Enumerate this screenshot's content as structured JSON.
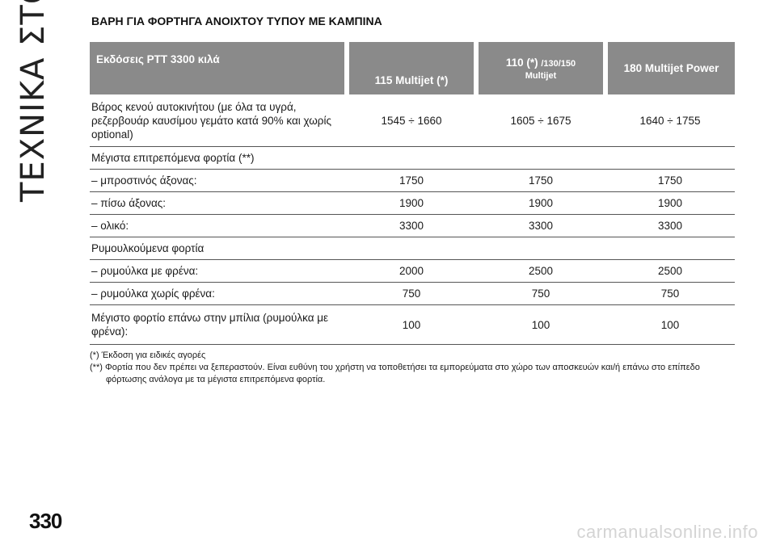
{
  "side_tab": {
    "label": "ΤΕΧΝΙΚΑ ΣΤΟΙΧΕΙΑ"
  },
  "page_number": "330",
  "section_title": "ΒΑΡΗ ΓΙΑ ΦΟΡΤΗΓΑ ΑΝΟΙΧΤΟΥ ΤΥΠΟΥ ΜΕ ΚΑΜΠΙΝΑ",
  "table": {
    "headers": {
      "col0": "Εκδόσεις PTT 3300 κιλά",
      "col1": "115 Multijet (*)",
      "col2_main": "110 (*) ",
      "col2_small": "/130/150",
      "col2_line2": "Multijet",
      "col3": "180 Multijet Power"
    },
    "rows": [
      {
        "label": "Βάρος κενού αυτοκινήτου (με όλα τα υγρά, ρεζερβουάρ καυσίμου γεμάτο κατά 90% και χωρίς optional)",
        "v1": "1545 ÷ 1660",
        "v2": "1605 ÷ 1675",
        "v3": "1640 ÷ 1755"
      },
      {
        "label": "Μέγιστα επιτρεπόμενα φορτία (**)",
        "v1": "",
        "v2": "",
        "v3": ""
      },
      {
        "label": "– μπροστινός άξονας:",
        "v1": "1750",
        "v2": "1750",
        "v3": "1750"
      },
      {
        "label": "– πίσω άξονας:",
        "v1": "1900",
        "v2": "1900",
        "v3": "1900"
      },
      {
        "label": "– ολικό:",
        "v1": "3300",
        "v2": "3300",
        "v3": "3300"
      },
      {
        "label": "Ρυμουλκούμενα φορτία",
        "v1": "",
        "v2": "",
        "v3": ""
      },
      {
        "label": "– ρυμούλκα με φρένα:",
        "v1": "2000",
        "v2": "2500",
        "v3": "2500"
      },
      {
        "label": "– ρυμούλκα χωρίς φρένα:",
        "v1": "750",
        "v2": "750",
        "v3": "750"
      },
      {
        "label": "Μέγιστο φορτίο επάνω στην μπίλια (ρυμούλκα με φρένα):",
        "v1": "100",
        "v2": "100",
        "v3": "100"
      }
    ]
  },
  "footnotes": [
    "(*) Έκδοση για ειδικές αγορές",
    "(**) Φορτία που δεν πρέπει να ξεπεραστούν. Είναι ευθύνη του χρήστη να τοποθετήσει τα εμπορεύματα στο χώρο των αποσκευών και/ή επάνω στο επίπεδο φόρτωσης ανάλογα με τα μέγιστα επιτρεπόμενα φορτία."
  ],
  "watermark": "carmanualsonline.info"
}
